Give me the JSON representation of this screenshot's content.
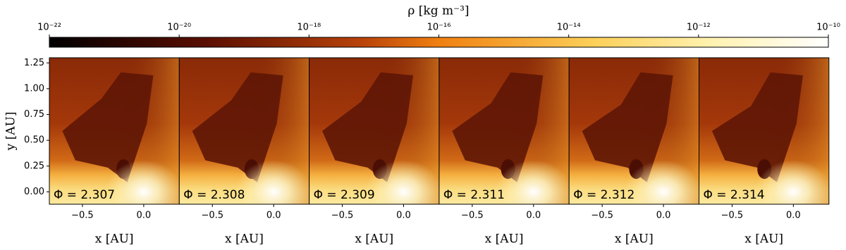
{
  "chart_data": [
    {
      "type": "colorbar",
      "label": "ρ [kg m⁻³]",
      "log": true,
      "lim": [
        1e-22,
        1e-10
      ],
      "ticks": [
        {
          "value": 1e-22,
          "label": "10⁻²²"
        },
        {
          "value": 1e-20,
          "label": "10⁻²⁰"
        },
        {
          "value": 1e-18,
          "label": "10⁻¹⁸"
        },
        {
          "value": 1e-16,
          "label": "10⁻¹⁶"
        },
        {
          "value": 1e-14,
          "label": "10⁻¹⁴"
        },
        {
          "value": 1e-12,
          "label": "10⁻¹²"
        },
        {
          "value": 1e-10,
          "label": "10⁻¹⁰"
        }
      ]
    },
    {
      "type": "image",
      "annotation": "Φ = 2.307",
      "xlabel": "x [AU]",
      "ylabel": "y [AU]",
      "xlim": [
        -0.77,
        0.29
      ],
      "ylim": [
        -0.12,
        1.3
      ],
      "xticks": [
        {
          "value": -0.5,
          "label": "−0.5"
        },
        {
          "value": 0,
          "label": "0.0"
        }
      ],
      "yticks": [
        {
          "value": 0,
          "label": "0.00"
        },
        {
          "value": 0.25,
          "label": "0.25"
        },
        {
          "value": 0.5,
          "label": "0.50"
        },
        {
          "value": 0.75,
          "label": "0.75"
        },
        {
          "value": 1,
          "label": "1.00"
        },
        {
          "value": 1.25,
          "label": "1.25"
        }
      ]
    },
    {
      "type": "image",
      "annotation": "Φ = 2.308",
      "xlabel": "x [AU]",
      "xlim": [
        -0.77,
        0.29
      ],
      "ylim": [
        -0.12,
        1.3
      ],
      "xticks": [
        {
          "value": -0.5,
          "label": "−0.5"
        },
        {
          "value": 0,
          "label": "0.0"
        }
      ]
    },
    {
      "type": "image",
      "annotation": "Φ = 2.309",
      "xlabel": "x [AU]",
      "xlim": [
        -0.77,
        0.29
      ],
      "ylim": [
        -0.12,
        1.3
      ],
      "xticks": [
        {
          "value": -0.5,
          "label": "−0.5"
        },
        {
          "value": 0,
          "label": "0.0"
        }
      ]
    },
    {
      "type": "image",
      "annotation": "Φ = 2.311",
      "xlabel": "x [AU]",
      "xlim": [
        -0.77,
        0.29
      ],
      "ylim": [
        -0.12,
        1.3
      ],
      "xticks": [
        {
          "value": -0.5,
          "label": "−0.5"
        },
        {
          "value": 0,
          "label": "0.0"
        }
      ]
    },
    {
      "type": "image",
      "annotation": "Φ = 2.312",
      "xlabel": "x [AU]",
      "xlim": [
        -0.77,
        0.29
      ],
      "ylim": [
        -0.12,
        1.3
      ],
      "xticks": [
        {
          "value": -0.5,
          "label": "−0.5"
        },
        {
          "value": 0,
          "label": "0.0"
        }
      ]
    },
    {
      "type": "image",
      "annotation": "Φ = 2.314",
      "xlabel": "x [AU]",
      "xlim": [
        -0.77,
        0.29
      ],
      "ylim": [
        -0.12,
        1.3
      ],
      "xticks": [
        {
          "value": -0.5,
          "label": "−0.5"
        },
        {
          "value": 0,
          "label": "0.0"
        }
      ]
    }
  ]
}
